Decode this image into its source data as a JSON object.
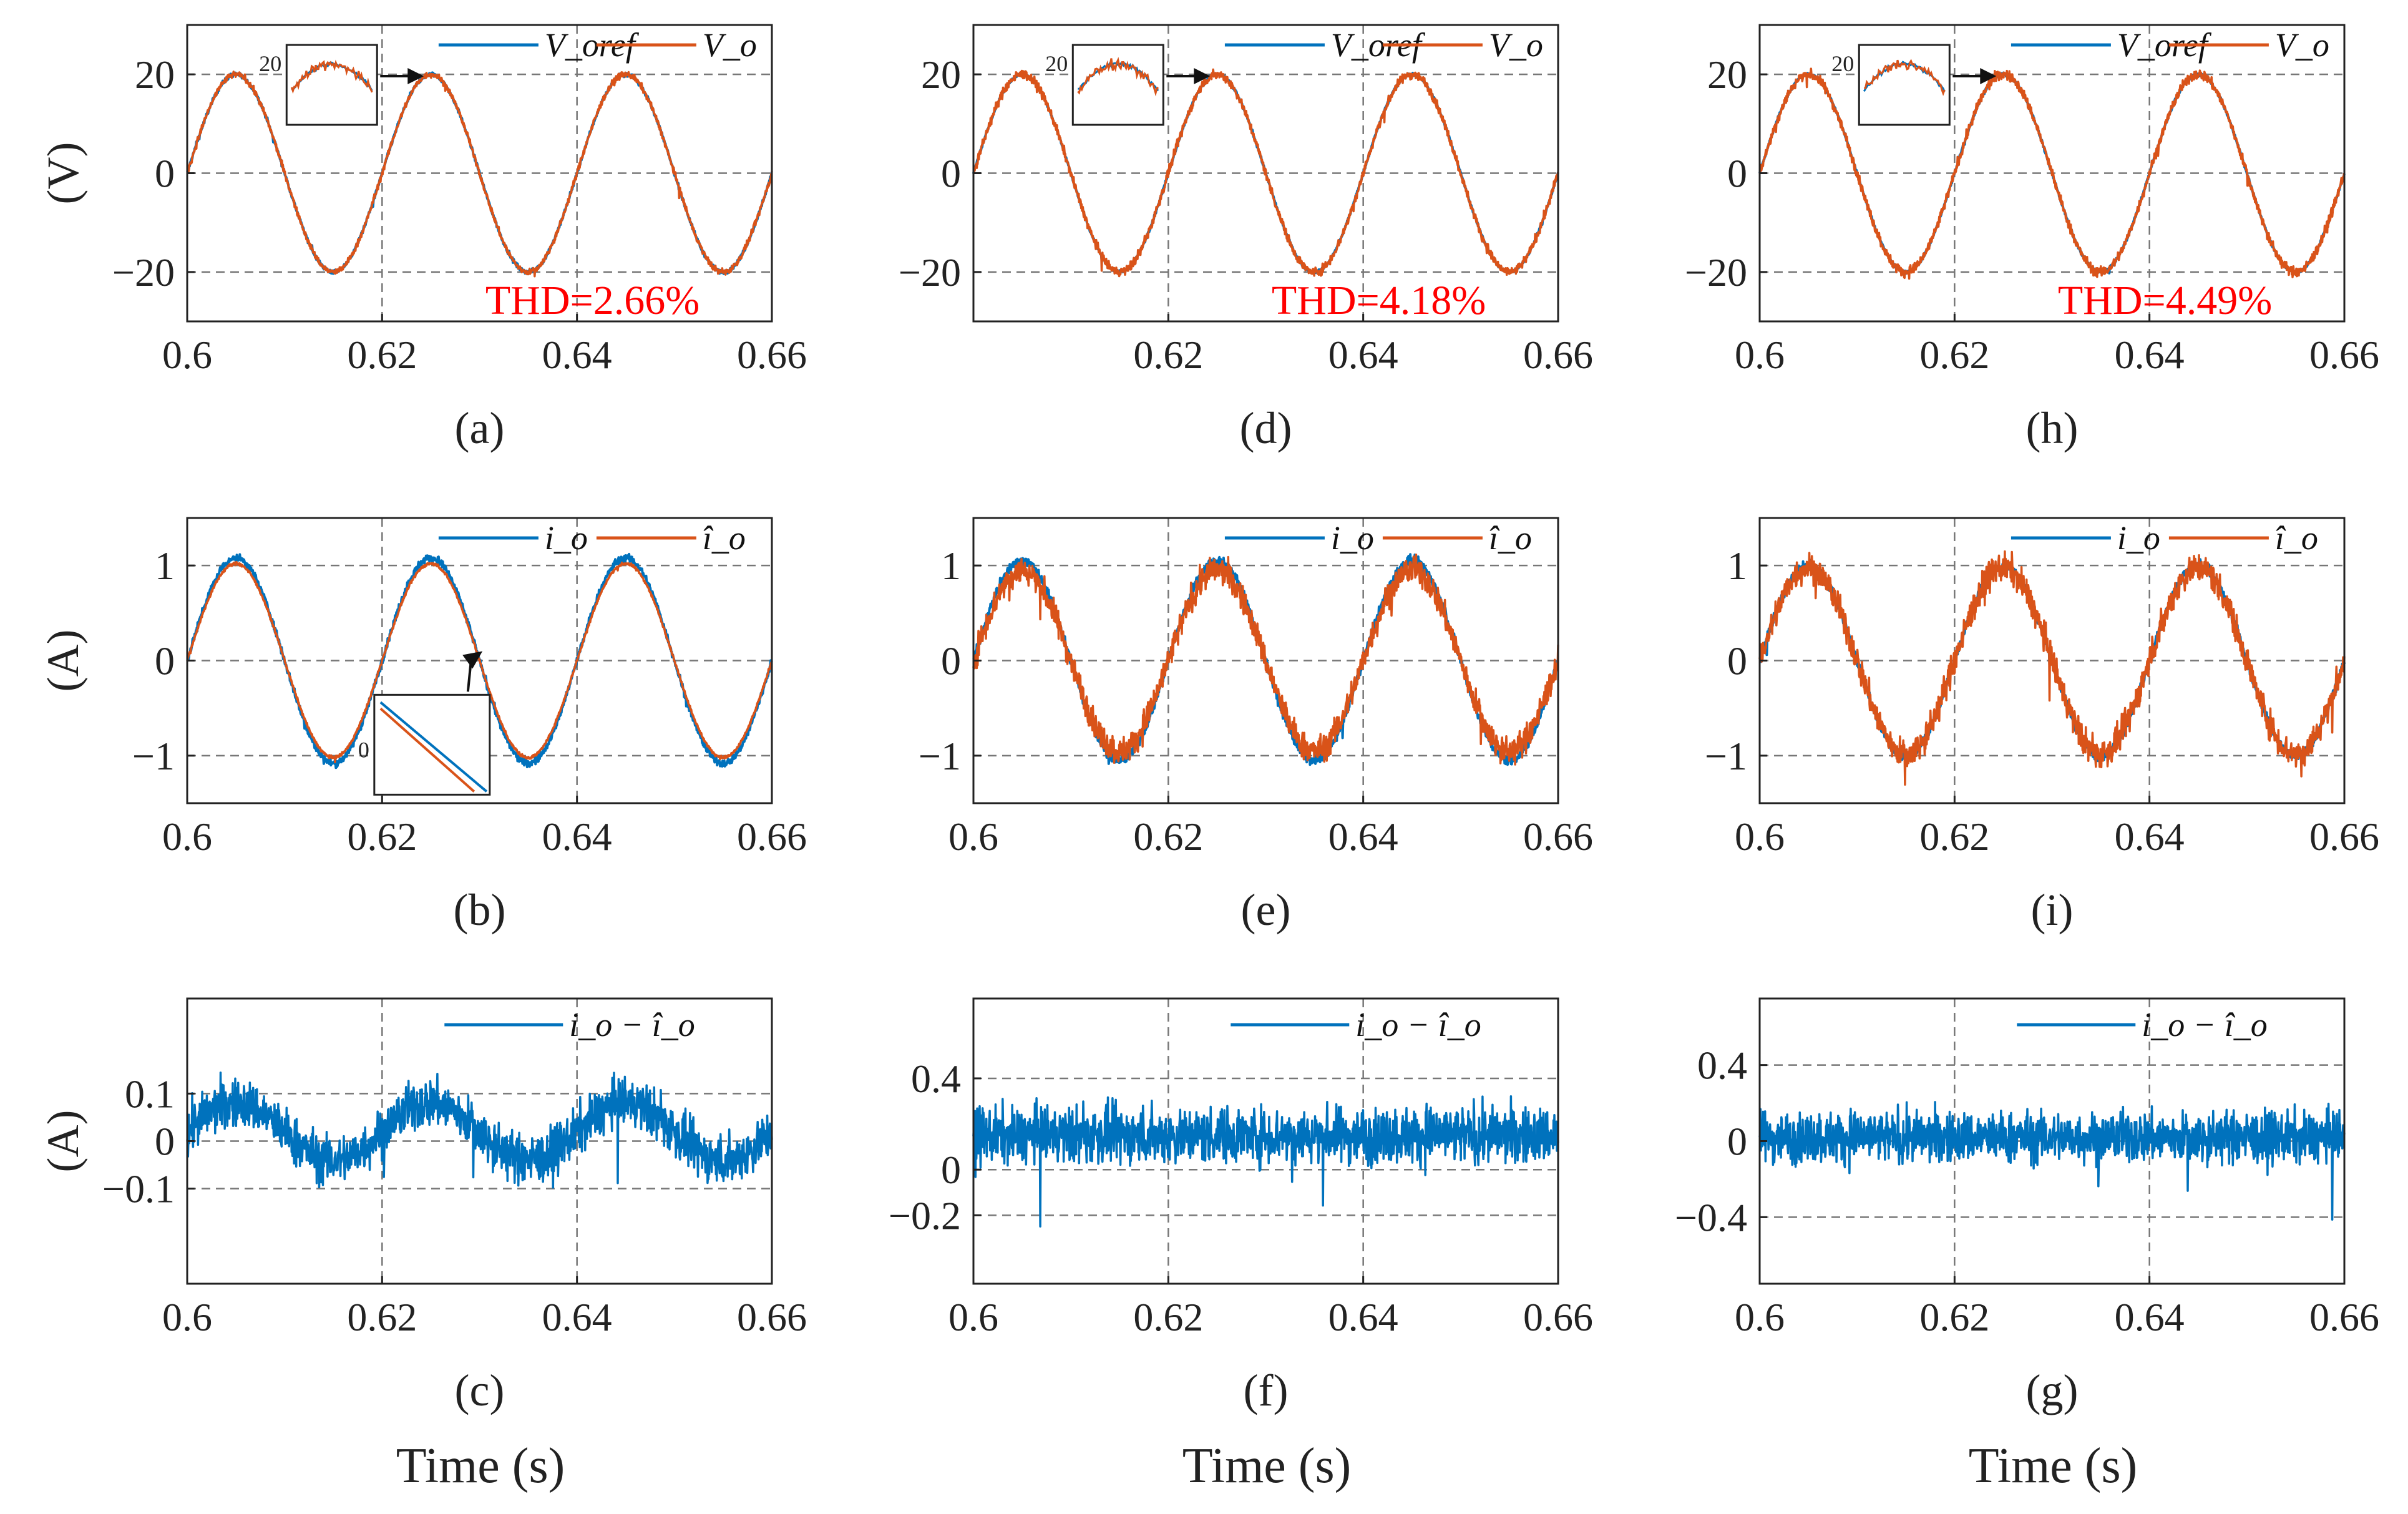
{
  "figure": {
    "time_label": "Time (s)",
    "colors": {
      "reference": "#0072BD",
      "measured": "#D95319",
      "thd": "#FF0000"
    }
  },
  "chart_data": [
    {
      "id": "a",
      "type": "line",
      "caption": "(a)",
      "ylabel": "(V)",
      "xlim": [
        0.6,
        0.66
      ],
      "ylim": [
        -30,
        30
      ],
      "xticks": [
        0.6,
        0.62,
        0.64,
        0.66
      ],
      "xtick_labels": [
        "0.6",
        "0.62",
        "0.64",
        "0.66"
      ],
      "yticks": [
        20,
        0,
        -20
      ],
      "ytick_labels": [
        "20",
        "0",
        "−20"
      ],
      "series": [
        {
          "name": "Voref",
          "legend": "V_oref",
          "amplitude": 20,
          "freq_hz": 50,
          "offset": 0,
          "noise": 0.4
        },
        {
          "name": "Vo",
          "legend": "V_o",
          "amplitude": 20,
          "freq_hz": 50,
          "offset": 0,
          "noise": 0.6
        }
      ],
      "thd": "THD=2.66%",
      "inset": {
        "tick": "20"
      }
    },
    {
      "id": "b",
      "type": "line",
      "caption": "(b)",
      "ylabel": "(A)",
      "xlim": [
        0.6,
        0.66
      ],
      "ylim": [
        -1.5,
        1.5
      ],
      "xticks": [
        0.6,
        0.62,
        0.64,
        0.66
      ],
      "xtick_labels": [
        "0.6",
        "0.62",
        "0.64",
        "0.66"
      ],
      "yticks": [
        1,
        0,
        -1
      ],
      "ytick_labels": [
        "1",
        "0",
        "−1"
      ],
      "series": [
        {
          "name": "io",
          "legend": "i_o",
          "amplitude": 1.08,
          "freq_hz": 50,
          "offset": 0,
          "noise": 0.04
        },
        {
          "name": "io_hat",
          "legend": "î_o",
          "amplitude": 1.02,
          "freq_hz": 50,
          "offset": 0,
          "noise": 0.015
        }
      ],
      "inset": {
        "tick": "0"
      }
    },
    {
      "id": "c",
      "type": "line",
      "caption": "(c)",
      "ylabel": "(A)",
      "xlim": [
        0.6,
        0.66
      ],
      "ylim": [
        -0.3,
        0.3
      ],
      "xticks": [
        0.6,
        0.62,
        0.64,
        0.66
      ],
      "xtick_labels": [
        "0.6",
        "0.62",
        "0.64",
        "0.66"
      ],
      "yticks": [
        0.1,
        0,
        -0.1
      ],
      "ytick_labels": [
        "0.1",
        "0",
        "−0.1"
      ],
      "series": [
        {
          "name": "io-io_hat",
          "legend": "i_o − î_o",
          "amplitude": 0.06,
          "freq_hz": 50,
          "offset": 0.02,
          "noise": 0.05
        }
      ]
    },
    {
      "id": "d",
      "type": "line",
      "caption": "(d)",
      "xlim": [
        0.6,
        0.66
      ],
      "ylim": [
        -30,
        30
      ],
      "xticks": [
        0.62,
        0.64,
        0.66
      ],
      "xtick_labels": [
        "0.62",
        "0.64",
        "0.66"
      ],
      "yticks": [
        20,
        0,
        -20
      ],
      "ytick_labels": [
        "20",
        "0",
        "−20"
      ],
      "series": [
        {
          "name": "Voref",
          "legend": "V_oref",
          "amplitude": 20,
          "freq_hz": 50,
          "offset": 0,
          "noise": 0.3
        },
        {
          "name": "Vo",
          "legend": "V_o",
          "amplitude": 20,
          "freq_hz": 50,
          "offset": 0,
          "noise": 0.9
        }
      ],
      "thd": "THD=4.18%",
      "inset": {
        "tick": "20"
      }
    },
    {
      "id": "e",
      "type": "line",
      "caption": "(e)",
      "xlim": [
        0.6,
        0.66
      ],
      "ylim": [
        -1.5,
        1.5
      ],
      "xticks": [
        0.6,
        0.62,
        0.64,
        0.66
      ],
      "xtick_labels": [
        "0.6",
        "0.62",
        "0.64",
        "0.66"
      ],
      "yticks": [
        1,
        0,
        -1
      ],
      "ytick_labels": [
        "1",
        "0",
        "−1"
      ],
      "series": [
        {
          "name": "io",
          "legend": "i_o",
          "amplitude": 1.05,
          "freq_hz": 50,
          "offset": 0,
          "noise": 0.05
        },
        {
          "name": "io_hat",
          "legend": "î_o",
          "amplitude": 0.95,
          "freq_hz": 50,
          "offset": 0,
          "noise": 0.14
        }
      ]
    },
    {
      "id": "f",
      "type": "line",
      "caption": "(f)",
      "xlim": [
        0.6,
        0.66
      ],
      "ylim": [
        -0.5,
        0.75
      ],
      "xticks": [
        0.6,
        0.62,
        0.64,
        0.66
      ],
      "xtick_labels": [
        "0.6",
        "0.62",
        "0.64",
        "0.66"
      ],
      "yticks": [
        0.4,
        0,
        -0.2
      ],
      "ytick_labels": [
        "0.4",
        "0",
        "−0.2"
      ],
      "series": [
        {
          "name": "io-io_hat",
          "legend": "i_o − î_o",
          "amplitude": 0,
          "freq_hz": 50,
          "offset": 0.15,
          "noise": 0.12
        }
      ]
    },
    {
      "id": "h",
      "type": "line",
      "caption": "(h)",
      "xlim": [
        0.6,
        0.66
      ],
      "ylim": [
        -30,
        30
      ],
      "xticks": [
        0.6,
        0.62,
        0.64,
        0.66
      ],
      "xtick_labels": [
        "0.6",
        "0.62",
        "0.64",
        "0.66"
      ],
      "yticks": [
        20,
        0,
        -20
      ],
      "ytick_labels": [
        "20",
        "0",
        "−20"
      ],
      "series": [
        {
          "name": "Voref",
          "legend": "V_oref",
          "amplitude": 20,
          "freq_hz": 50,
          "offset": 0,
          "noise": 0.3
        },
        {
          "name": "Vo",
          "legend": "V_o",
          "amplitude": 20,
          "freq_hz": 50,
          "offset": 0,
          "noise": 1.0
        }
      ],
      "thd": "THD=4.49%",
      "inset": {
        "tick": "20"
      }
    },
    {
      "id": "i",
      "type": "line",
      "caption": "(i)",
      "xlim": [
        0.6,
        0.66
      ],
      "ylim": [
        -1.5,
        1.5
      ],
      "xticks": [
        0.6,
        0.62,
        0.64,
        0.66
      ],
      "xtick_labels": [
        "0.6",
        "0.62",
        "0.64",
        "0.66"
      ],
      "yticks": [
        1,
        0,
        -1
      ],
      "ytick_labels": [
        "1",
        "0",
        "−1"
      ],
      "series": [
        {
          "name": "io",
          "legend": "i_o",
          "amplitude": 1.0,
          "freq_hz": 50,
          "offset": 0,
          "noise": 0.05
        },
        {
          "name": "io_hat",
          "legend": "î_o",
          "amplitude": 0.98,
          "freq_hz": 50,
          "offset": 0,
          "noise": 0.15
        }
      ]
    },
    {
      "id": "g",
      "type": "line",
      "caption": "(g)",
      "xlim": [
        0.6,
        0.66
      ],
      "ylim": [
        -0.75,
        0.75
      ],
      "xticks": [
        0.6,
        0.62,
        0.64,
        0.66
      ],
      "xtick_labels": [
        "0.6",
        "0.62",
        "0.64",
        "0.66"
      ],
      "yticks": [
        0.4,
        0,
        -0.4
      ],
      "ytick_labels": [
        "0.4",
        "0",
        "−0.4"
      ],
      "series": [
        {
          "name": "io-io_hat",
          "legend": "i_o − î_o",
          "amplitude": 0,
          "freq_hz": 50,
          "offset": 0.02,
          "noise": 0.13
        }
      ]
    }
  ]
}
